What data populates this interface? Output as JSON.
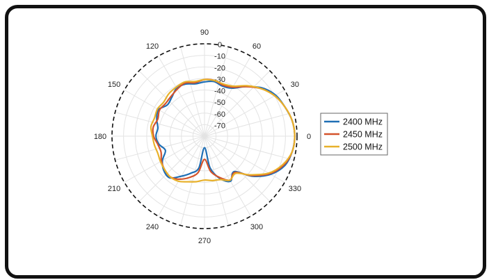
{
  "chart_data": {
    "type": "polar-line",
    "title": "",
    "angle_unit": "deg",
    "theta_ticks": [
      0,
      30,
      60,
      90,
      120,
      150,
      180,
      210,
      240,
      270,
      300,
      330
    ],
    "r_ticks": [
      0,
      -10,
      -20,
      -30,
      -40,
      -50,
      -60,
      -70
    ],
    "rlim": [
      -80,
      0
    ],
    "reference_circle": {
      "value": 0,
      "style": "dashed",
      "color": "#111111"
    },
    "legend_position": "right",
    "theta": [
      0,
      10,
      20,
      30,
      40,
      50,
      60,
      70,
      80,
      90,
      100,
      110,
      120,
      130,
      140,
      150,
      160,
      170,
      180,
      190,
      200,
      210,
      220,
      230,
      240,
      250,
      260,
      270,
      280,
      290,
      300,
      310,
      320,
      330,
      340,
      350
    ],
    "series": [
      {
        "name": "2400 MHz",
        "color": "#1f6fb5",
        "values": [
          -2,
          -3,
          -6,
          -9,
          -15,
          -24,
          -32,
          -34,
          -32,
          -33,
          -34,
          -32,
          -32,
          -36,
          -38,
          -34,
          -36,
          -39,
          -38,
          -40,
          -44,
          -38,
          -34,
          -33,
          -40,
          -46,
          -52,
          -70,
          -52,
          -41,
          -35,
          -40,
          -26,
          -14,
          -6,
          -3
        ]
      },
      {
        "name": "2450 MHz",
        "color": "#d4532b",
        "values": [
          -2,
          -3,
          -6,
          -10,
          -16,
          -24,
          -31,
          -33,
          -31,
          -31,
          -33,
          -31,
          -33,
          -35,
          -36,
          -35,
          -37,
          -35,
          -36,
          -39,
          -40,
          -37,
          -35,
          -34,
          -37,
          -42,
          -48,
          -60,
          -49,
          -42,
          -36,
          -39,
          -27,
          -15,
          -7,
          -3
        ]
      },
      {
        "name": "2500 MHz",
        "color": "#e8b12b",
        "values": [
          -2,
          -3,
          -6,
          -10,
          -16,
          -23,
          -30,
          -32,
          -31,
          -31,
          -32,
          -30,
          -31,
          -32,
          -34,
          -33,
          -34,
          -33,
          -35,
          -36,
          -37,
          -36,
          -35,
          -34,
          -35,
          -38,
          -40,
          -42,
          -41,
          -40,
          -36,
          -38,
          -28,
          -16,
          -8,
          -3
        ]
      }
    ]
  }
}
